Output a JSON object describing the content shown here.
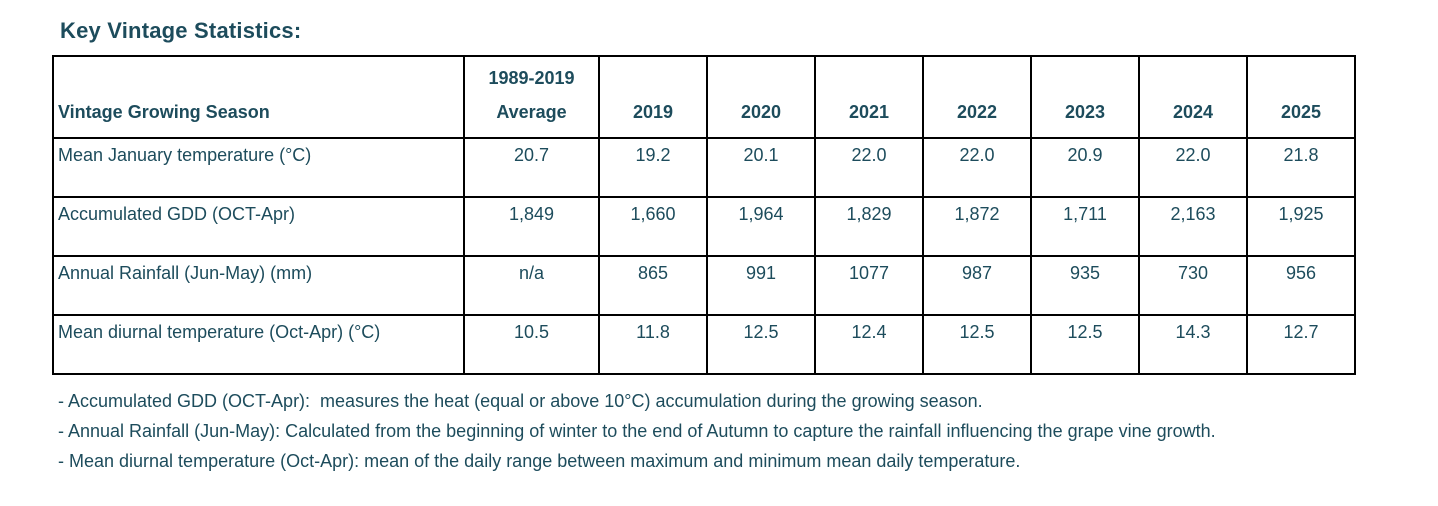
{
  "title": "Key Vintage Statistics:",
  "table": {
    "row_header_label": "Vintage Growing Season",
    "columns": [
      "1989-2019 Average",
      "2019",
      "2020",
      "2021",
      "2022",
      "2023",
      "2024",
      "2025"
    ],
    "rows": [
      {
        "label": "Mean January temperature (°C)",
        "values": [
          "20.7",
          "19.2",
          "20.1",
          "22.0",
          "22.0",
          "20.9",
          "22.0",
          "21.8"
        ]
      },
      {
        "label": "Accumulated GDD (OCT-Apr)",
        "values": [
          "1,849",
          "1,660",
          "1,964",
          "1,829",
          "1,872",
          "1,711",
          "2,163",
          "1,925"
        ]
      },
      {
        "label": "Annual Rainfall (Jun-May) (mm)",
        "values": [
          "n/a",
          "865",
          "991",
          "1077",
          "987",
          "935",
          "730",
          "956"
        ]
      },
      {
        "label": "Mean diurnal temperature (Oct-Apr) (°C)",
        "values": [
          "10.5",
          "11.8",
          "12.5",
          "12.4",
          "12.5",
          "12.5",
          "14.3",
          "12.7"
        ]
      }
    ]
  },
  "footnotes": [
    "- Accumulated GDD (OCT-Apr):  measures the heat (equal or above 10°C) accumulation during the growing season.",
    "- Annual Rainfall (Jun-May): Calculated from the beginning of winter to the end of Autumn to capture the rainfall influencing the grape vine growth.",
    "- Mean diurnal temperature (Oct-Apr): mean of the daily range between maximum and minimum mean daily temperature."
  ],
  "colors": {
    "text": "#1d4c5c",
    "border": "#000000",
    "background": "#ffffff"
  }
}
